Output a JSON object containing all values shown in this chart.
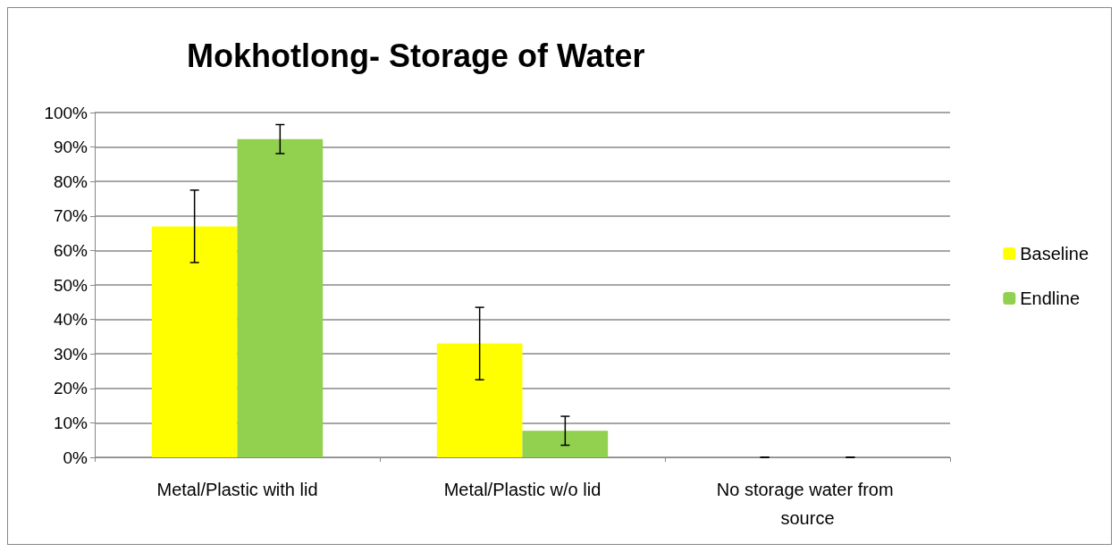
{
  "chart_data": {
    "type": "bar",
    "title": "Mokhotlong- Storage of Water",
    "categories": [
      "Metal/Plastic with lid",
      "Metal/Plastic w/o lid",
      "No storage water from source"
    ],
    "series": [
      {
        "name": "Baseline",
        "color": "#ffff00",
        "values": [
          67,
          33,
          0
        ],
        "errors": [
          10.5,
          10.5,
          0
        ]
      },
      {
        "name": "Endline",
        "color": "#92d050",
        "values": [
          92.3,
          7.7,
          0
        ],
        "errors": [
          4.2,
          4.2,
          0
        ]
      }
    ],
    "ylim": [
      0,
      100
    ],
    "yticks": [
      {
        "value": 0,
        "label": "0%"
      },
      {
        "value": 10,
        "label": "10%"
      },
      {
        "value": 20,
        "label": "20%"
      },
      {
        "value": 30,
        "label": "30%"
      },
      {
        "value": 40,
        "label": "40%"
      },
      {
        "value": 50,
        "label": "50%"
      },
      {
        "value": 60,
        "label": "60%"
      },
      {
        "value": 70,
        "label": "70%"
      },
      {
        "value": 80,
        "label": "80%"
      },
      {
        "value": 90,
        "label": "90%"
      },
      {
        "value": 100,
        "label": "100%"
      }
    ],
    "grid": "y",
    "legend": "right"
  }
}
